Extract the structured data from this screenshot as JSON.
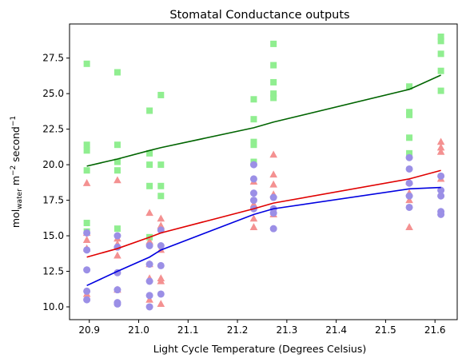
{
  "chart_data": {
    "type": "scatter",
    "title": "Stomatal Conductance outputs",
    "xlabel": "Light Cycle Temperature (Degrees Celsius)",
    "ylabel": {
      "base": "mol",
      "sub": "water",
      "rest": " m",
      "sup1": "−2",
      "rest2": " second",
      "sup2": "−1"
    },
    "xlim": [
      20.86,
      21.645
    ],
    "ylim": [
      9.1,
      29.9
    ],
    "xticks": [
      20.9,
      21.0,
      21.1,
      21.2,
      21.3,
      21.4,
      21.5,
      21.6
    ],
    "xtick_labels": [
      "20.9",
      "21.0",
      "21.1",
      "21.2",
      "21.3",
      "21.4",
      "21.5",
      "21.6"
    ],
    "yticks": [
      10.0,
      12.5,
      15.0,
      17.5,
      20.0,
      22.5,
      25.0,
      27.5
    ],
    "ytick_labels": [
      "10.0",
      "12.5",
      "15.0",
      "17.5",
      "20.0",
      "22.5",
      "25.0",
      "27.5"
    ],
    "grid": false,
    "series": [
      {
        "marker": "square",
        "color": "#90ee90",
        "points": [
          [
            20.895,
            27.1
          ],
          [
            20.895,
            21.4
          ],
          [
            20.895,
            21.0
          ],
          [
            20.895,
            19.6
          ],
          [
            20.895,
            15.9
          ],
          [
            20.895,
            15.3
          ],
          [
            20.957,
            26.5
          ],
          [
            20.957,
            21.4
          ],
          [
            20.957,
            20.2
          ],
          [
            20.957,
            19.6
          ],
          [
            20.957,
            15.5
          ],
          [
            21.022,
            23.8
          ],
          [
            21.022,
            20.8
          ],
          [
            21.022,
            20.0
          ],
          [
            21.022,
            18.5
          ],
          [
            21.022,
            14.9
          ],
          [
            21.045,
            24.9
          ],
          [
            21.045,
            20.0
          ],
          [
            21.045,
            18.5
          ],
          [
            21.045,
            17.8
          ],
          [
            21.233,
            24.6
          ],
          [
            21.233,
            23.2
          ],
          [
            21.233,
            21.6
          ],
          [
            21.233,
            21.4
          ],
          [
            21.233,
            20.2
          ],
          [
            21.273,
            28.5
          ],
          [
            21.273,
            27.0
          ],
          [
            21.273,
            25.8
          ],
          [
            21.273,
            25.0
          ],
          [
            21.273,
            24.7
          ],
          [
            21.548,
            25.5
          ],
          [
            21.548,
            23.7
          ],
          [
            21.548,
            23.5
          ],
          [
            21.548,
            21.9
          ],
          [
            21.548,
            20.8
          ],
          [
            21.612,
            29.0
          ],
          [
            21.612,
            28.7
          ],
          [
            21.612,
            27.8
          ],
          [
            21.612,
            26.6
          ],
          [
            21.612,
            25.2
          ]
        ]
      },
      {
        "marker": "triangle",
        "color": "#f49191",
        "points": [
          [
            20.895,
            18.7
          ],
          [
            20.895,
            15.2
          ],
          [
            20.895,
            14.7
          ],
          [
            20.895,
            14.1
          ],
          [
            20.895,
            10.9
          ],
          [
            20.957,
            18.9
          ],
          [
            20.957,
            14.8
          ],
          [
            20.957,
            14.4
          ],
          [
            20.957,
            13.6
          ],
          [
            20.957,
            11.2
          ],
          [
            21.022,
            16.6
          ],
          [
            21.022,
            14.6
          ],
          [
            21.022,
            13.0
          ],
          [
            21.022,
            12.0
          ],
          [
            21.022,
            10.5
          ],
          [
            21.045,
            16.2
          ],
          [
            21.045,
            15.7
          ],
          [
            21.045,
            14.0
          ],
          [
            21.045,
            12.0
          ],
          [
            21.045,
            11.8
          ],
          [
            21.045,
            10.2
          ],
          [
            21.233,
            18.8
          ],
          [
            21.233,
            17.2
          ],
          [
            21.233,
            16.2
          ],
          [
            21.233,
            15.6
          ],
          [
            21.273,
            20.7
          ],
          [
            21.273,
            19.3
          ],
          [
            21.273,
            18.6
          ],
          [
            21.273,
            17.9
          ],
          [
            21.273,
            16.5
          ],
          [
            21.548,
            18.8
          ],
          [
            21.548,
            18.0
          ],
          [
            21.548,
            17.5
          ],
          [
            21.548,
            15.6
          ],
          [
            21.612,
            21.6
          ],
          [
            21.612,
            21.2
          ],
          [
            21.612,
            20.9
          ],
          [
            21.612,
            19.0
          ]
        ]
      },
      {
        "marker": "circle",
        "color": "#9b8fe6",
        "points": [
          [
            20.895,
            15.2
          ],
          [
            20.895,
            14.0
          ],
          [
            20.895,
            12.6
          ],
          [
            20.895,
            11.1
          ],
          [
            20.895,
            10.5
          ],
          [
            20.957,
            15.0
          ],
          [
            20.957,
            14.2
          ],
          [
            20.957,
            12.4
          ],
          [
            20.957,
            11.2
          ],
          [
            20.957,
            10.3
          ],
          [
            20.957,
            10.2
          ],
          [
            21.022,
            14.3
          ],
          [
            21.022,
            13.0
          ],
          [
            21.022,
            11.8
          ],
          [
            21.022,
            10.8
          ],
          [
            21.022,
            10.0
          ],
          [
            21.045,
            15.4
          ],
          [
            21.045,
            14.3
          ],
          [
            21.045,
            12.9
          ],
          [
            21.045,
            10.9
          ],
          [
            21.233,
            20.0
          ],
          [
            21.233,
            19.0
          ],
          [
            21.233,
            18.0
          ],
          [
            21.233,
            17.5
          ],
          [
            21.233,
            16.9
          ],
          [
            21.273,
            17.7
          ],
          [
            21.273,
            16.9
          ],
          [
            21.273,
            16.6
          ],
          [
            21.273,
            15.5
          ],
          [
            21.548,
            20.5
          ],
          [
            21.548,
            19.7
          ],
          [
            21.548,
            18.7
          ],
          [
            21.548,
            17.8
          ],
          [
            21.548,
            17.0
          ],
          [
            21.612,
            19.2
          ],
          [
            21.612,
            18.2
          ],
          [
            21.612,
            17.8
          ],
          [
            21.612,
            16.7
          ],
          [
            21.612,
            16.5
          ]
        ]
      }
    ],
    "lines": [
      {
        "color": "#006400",
        "points": [
          [
            20.895,
            19.9
          ],
          [
            20.957,
            20.4
          ],
          [
            21.022,
            21.0
          ],
          [
            21.045,
            21.2
          ],
          [
            21.233,
            22.6
          ],
          [
            21.273,
            23.0
          ],
          [
            21.548,
            25.3
          ],
          [
            21.612,
            26.3
          ]
        ]
      },
      {
        "color": "#e00000",
        "points": [
          [
            20.895,
            13.5
          ],
          [
            20.957,
            14.1
          ],
          [
            21.022,
            14.9
          ],
          [
            21.045,
            15.2
          ],
          [
            21.233,
            16.9
          ],
          [
            21.273,
            17.3
          ],
          [
            21.548,
            19.0
          ],
          [
            21.612,
            19.6
          ]
        ]
      },
      {
        "color": "#0000e0",
        "points": [
          [
            20.895,
            11.5
          ],
          [
            20.957,
            12.5
          ],
          [
            21.022,
            13.5
          ],
          [
            21.045,
            14.0
          ],
          [
            21.233,
            16.5
          ],
          [
            21.273,
            16.9
          ],
          [
            21.548,
            18.3
          ],
          [
            21.612,
            18.4
          ]
        ]
      }
    ]
  }
}
